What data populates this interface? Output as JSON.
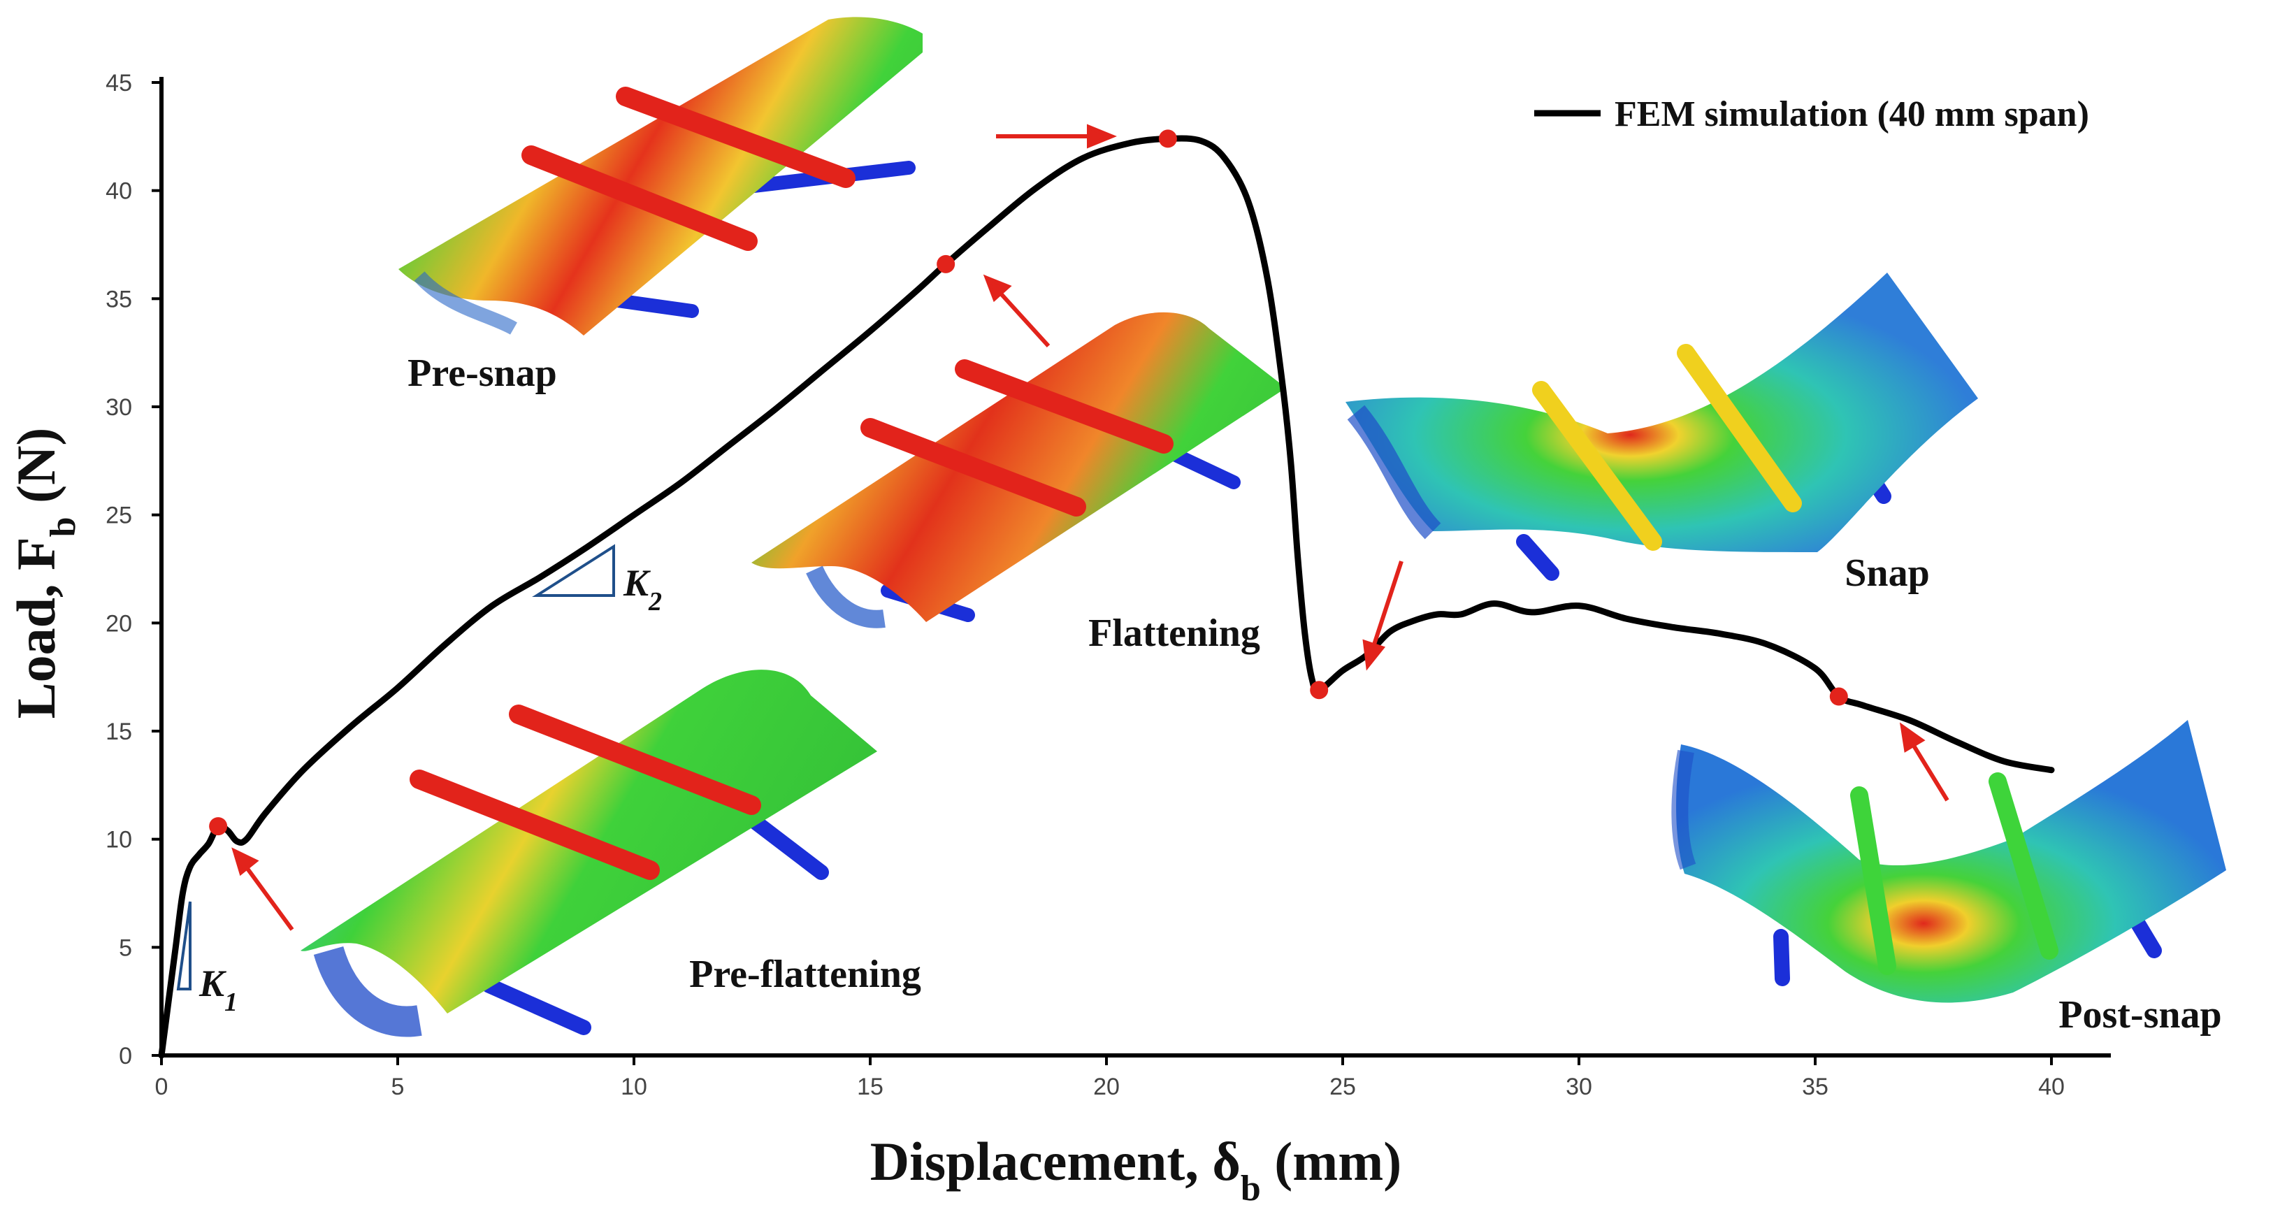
{
  "chart_data": {
    "type": "line",
    "title": "",
    "xlabel": "Displacement, δ",
    "xlabel_sub": "b",
    "xlabel_unit": " (mm)",
    "ylabel": "Load, F",
    "ylabel_sub": "b",
    "ylabel_unit": " (N)",
    "xlim": [
      0,
      40
    ],
    "ylim": [
      0,
      45
    ],
    "xticks": [
      0,
      5,
      10,
      15,
      20,
      25,
      30,
      35,
      40
    ],
    "yticks": [
      0,
      5,
      10,
      15,
      20,
      25,
      30,
      35,
      40,
      45
    ],
    "legend": {
      "label": "FEM simulation (40 mm span)",
      "placement": "top-right"
    },
    "series": [
      {
        "name": "FEM simulation (40 mm span)",
        "color": "#000000",
        "x": [
          0,
          0.15,
          0.3,
          0.45,
          0.6,
          0.8,
          1.0,
          1.2,
          1.4,
          1.6,
          1.8,
          2.2,
          3,
          4,
          5,
          6,
          7,
          8,
          9,
          10,
          11,
          12,
          13,
          14,
          15,
          16,
          16.6,
          17.5,
          18.5,
          19.5,
          20.5,
          21.3,
          22.0,
          22.5,
          23.0,
          23.4,
          23.7,
          23.9,
          24.05,
          24.2,
          24.35,
          24.5,
          25,
          25.5,
          26,
          26.5,
          27,
          27.5,
          28.2,
          29,
          30,
          31,
          32,
          33,
          34,
          35,
          35.5,
          36,
          37,
          38,
          39,
          40
        ],
        "y": [
          0,
          2.5,
          5,
          7.5,
          8.7,
          9.3,
          9.8,
          10.6,
          10.4,
          9.9,
          10.0,
          11.2,
          13.2,
          15.2,
          17.0,
          19.0,
          20.8,
          22.1,
          23.5,
          25.0,
          26.5,
          28.2,
          29.9,
          31.7,
          33.5,
          35.4,
          36.6,
          38.3,
          40.1,
          41.5,
          42.2,
          42.4,
          42.3,
          41.5,
          39.5,
          36.0,
          31.5,
          27.5,
          23.0,
          19.5,
          17.4,
          16.9,
          17.8,
          18.5,
          19.6,
          20.1,
          20.4,
          20.4,
          20.9,
          20.5,
          20.8,
          20.2,
          19.8,
          19.5,
          19.0,
          17.9,
          16.6,
          16.2,
          15.5,
          14.5,
          13.6,
          13.2
        ]
      }
    ],
    "markers": [
      {
        "x": 1.2,
        "y": 10.6
      },
      {
        "x": 16.6,
        "y": 36.6
      },
      {
        "x": 21.3,
        "y": 42.4
      },
      {
        "x": 24.5,
        "y": 16.9
      },
      {
        "x": 35.5,
        "y": 16.6
      }
    ],
    "annotations": {
      "stages": [
        "Pre-snap",
        "Flattening",
        "Snap",
        "Pre-flattening",
        "Post-snap"
      ],
      "k1_main": "K",
      "k1_sub": "1",
      "k2_main": "K",
      "k2_sub": "2"
    }
  }
}
